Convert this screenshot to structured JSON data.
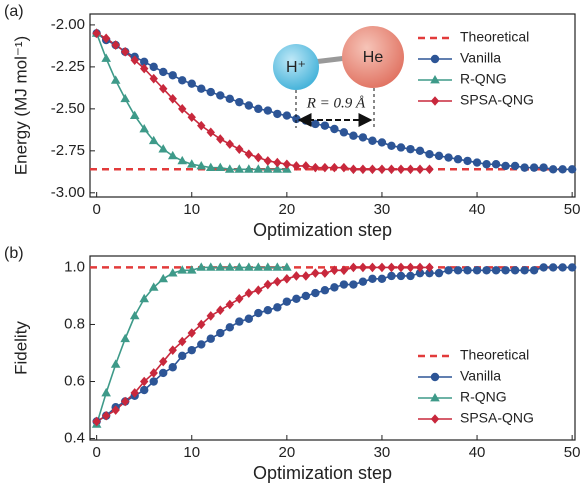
{
  "chart_data": [
    {
      "type": "line",
      "panel_label": "(a)",
      "x_label": "Optimization step",
      "y_label": "Energy (MJ mol⁻¹)",
      "xlim": [
        -0.7,
        50.3
      ],
      "xticks": [
        0,
        10,
        20,
        30,
        40,
        50
      ],
      "ylim": [
        -3.025,
        -1.935
      ],
      "yticks": [
        {
          "value": -2,
          "label": "-2.00"
        },
        -2.25,
        {
          "value": -2.5,
          "label": "-2.50"
        },
        -2.75,
        {
          "value": -3,
          "label": "-3.00"
        }
      ],
      "legend": "upper right",
      "annotations": [
        "H⁺",
        "He",
        "R = 0.9 Å"
      ],
      "series": [
        {
          "name": "Theoretical",
          "color": "#e23b3b",
          "style": "dashed",
          "level": -2.86
        },
        {
          "name": "Vanilla",
          "color": "#2d5596",
          "marker": "circle",
          "x": [
            0,
            1,
            2,
            3,
            4,
            5,
            6,
            7,
            8,
            9,
            10,
            11,
            12,
            13,
            14,
            15,
            16,
            17,
            18,
            19,
            20,
            21,
            22,
            23,
            24,
            25,
            26,
            27,
            28,
            29,
            30,
            31,
            32,
            33,
            34,
            35,
            36,
            37,
            38,
            39,
            40,
            41,
            42,
            43,
            44,
            45,
            46,
            47,
            48,
            49,
            50
          ],
          "values": [
            -2.05,
            -2.09,
            -2.12,
            -2.16,
            -2.19,
            -2.22,
            -2.25,
            -2.28,
            -2.3,
            -2.33,
            -2.35,
            -2.38,
            -2.4,
            -2.42,
            -2.44,
            -2.46,
            -2.48,
            -2.5,
            -2.51,
            -2.53,
            -2.54,
            -2.56,
            -2.57,
            -2.59,
            -2.6,
            -2.62,
            -2.64,
            -2.66,
            -2.67,
            -2.69,
            -2.7,
            -2.72,
            -2.73,
            -2.74,
            -2.75,
            -2.77,
            -2.78,
            -2.79,
            -2.8,
            -2.81,
            -2.82,
            -2.83,
            -2.83,
            -2.84,
            -2.84,
            -2.85,
            -2.85,
            -2.85,
            -2.86,
            -2.86,
            -2.86
          ]
        },
        {
          "name": "R-QNG",
          "color": "#3e9a89",
          "marker": "triangle",
          "x": [
            0,
            1,
            2,
            3,
            4,
            5,
            6,
            7,
            8,
            9,
            10,
            11,
            12,
            13,
            14,
            15,
            16,
            17,
            18,
            19,
            20
          ],
          "values": [
            -2.05,
            -2.2,
            -2.33,
            -2.44,
            -2.54,
            -2.62,
            -2.69,
            -2.74,
            -2.78,
            -2.81,
            -2.83,
            -2.84,
            -2.85,
            -2.85,
            -2.86,
            -2.86,
            -2.86,
            -2.86,
            -2.86,
            -2.86,
            -2.86
          ]
        },
        {
          "name": "SPSA-QNG",
          "color": "#c8283c",
          "marker": "diamond",
          "x": [
            0,
            1,
            2,
            3,
            4,
            5,
            6,
            7,
            8,
            9,
            10,
            11,
            12,
            13,
            14,
            15,
            16,
            17,
            18,
            19,
            20,
            21,
            22,
            23,
            24,
            25,
            26,
            27,
            28,
            29,
            30,
            31,
            32,
            33,
            34,
            35
          ],
          "values": [
            -2.05,
            -2.08,
            -2.12,
            -2.16,
            -2.21,
            -2.26,
            -2.32,
            -2.38,
            -2.44,
            -2.5,
            -2.55,
            -2.6,
            -2.64,
            -2.68,
            -2.71,
            -2.74,
            -2.77,
            -2.79,
            -2.81,
            -2.82,
            -2.83,
            -2.84,
            -2.84,
            -2.85,
            -2.85,
            -2.85,
            -2.85,
            -2.86,
            -2.86,
            -2.86,
            -2.86,
            -2.86,
            -2.86,
            -2.86,
            -2.86,
            -2.86
          ]
        }
      ]
    },
    {
      "type": "line",
      "panel_label": "(b)",
      "x_label": "Optimization step",
      "y_label": "Fidelity",
      "xlim": [
        -0.7,
        50.3
      ],
      "xticks": [
        0,
        10,
        20,
        30,
        40,
        50
      ],
      "ylim": [
        0.395,
        1.04
      ],
      "yticks": [
        0.4,
        0.6,
        0.8,
        {
          "value": 1,
          "label": "1.0"
        }
      ],
      "legend": "lower right",
      "series": [
        {
          "name": "Theoretical",
          "color": "#e23b3b",
          "style": "dashed",
          "level": 1
        },
        {
          "name": "Vanilla",
          "color": "#2d5596",
          "marker": "circle",
          "x": [
            0,
            1,
            2,
            3,
            4,
            5,
            6,
            7,
            8,
            9,
            10,
            11,
            12,
            13,
            14,
            15,
            16,
            17,
            18,
            19,
            20,
            21,
            22,
            23,
            24,
            25,
            26,
            27,
            28,
            29,
            30,
            31,
            32,
            33,
            34,
            35,
            36,
            37,
            38,
            39,
            40,
            41,
            42,
            43,
            44,
            45,
            46,
            47,
            48,
            49,
            50
          ],
          "values": [
            0.46,
            0.48,
            0.51,
            0.53,
            0.55,
            0.57,
            0.6,
            0.63,
            0.65,
            0.69,
            0.71,
            0.73,
            0.75,
            0.77,
            0.79,
            0.81,
            0.82,
            0.84,
            0.85,
            0.86,
            0.88,
            0.89,
            0.9,
            0.91,
            0.92,
            0.93,
            0.94,
            0.94,
            0.95,
            0.96,
            0.96,
            0.97,
            0.97,
            0.97,
            0.98,
            0.98,
            0.98,
            0.99,
            0.99,
            0.99,
            0.99,
            0.99,
            0.99,
            0.99,
            0.99,
            0.99,
            0.99,
            1,
            1,
            1,
            1
          ]
        },
        {
          "name": "R-QNG",
          "color": "#3e9a89",
          "marker": "triangle",
          "x": [
            0,
            1,
            2,
            3,
            4,
            5,
            6,
            7,
            8,
            9,
            10,
            11,
            12,
            13,
            14,
            15,
            16,
            17,
            18,
            19,
            20
          ],
          "values": [
            0.45,
            0.56,
            0.66,
            0.75,
            0.83,
            0.89,
            0.93,
            0.96,
            0.98,
            0.99,
            0.99,
            1,
            1,
            1,
            1,
            1,
            1,
            1,
            1,
            1,
            1
          ]
        },
        {
          "name": "SPSA-QNG",
          "color": "#c8283c",
          "marker": "diamond",
          "x": [
            0,
            1,
            2,
            3,
            4,
            5,
            6,
            7,
            8,
            9,
            10,
            11,
            12,
            13,
            14,
            15,
            16,
            17,
            18,
            19,
            20,
            21,
            22,
            23,
            24,
            25,
            26,
            27,
            28,
            29,
            30,
            31,
            32,
            33,
            34,
            35
          ],
          "values": [
            0.46,
            0.48,
            0.5,
            0.53,
            0.56,
            0.6,
            0.63,
            0.67,
            0.71,
            0.74,
            0.77,
            0.8,
            0.83,
            0.85,
            0.87,
            0.89,
            0.91,
            0.92,
            0.94,
            0.95,
            0.96,
            0.97,
            0.97,
            0.98,
            0.98,
            0.99,
            0.99,
            1,
            1,
            1,
            1,
            1,
            1,
            1,
            1,
            1
          ]
        }
      ]
    }
  ]
}
